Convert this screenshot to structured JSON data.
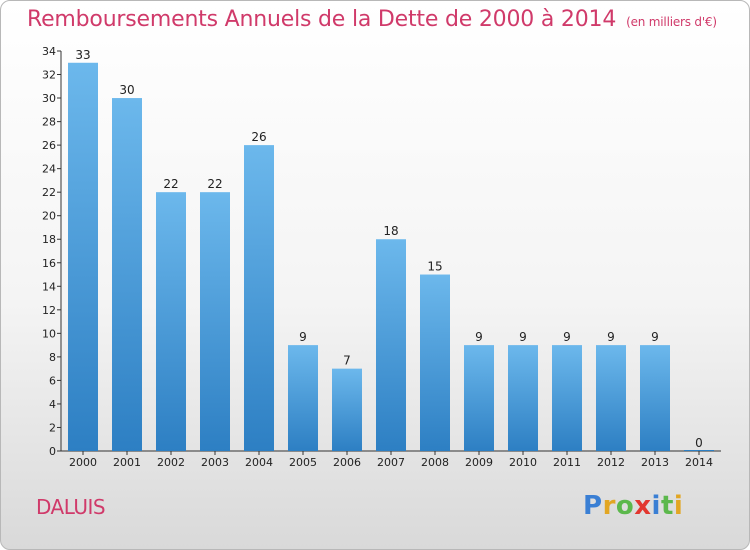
{
  "title": {
    "main": "Remboursements Annuels de la Dette de 2000 à 2014",
    "unit": "(en milliers d'€)"
  },
  "place": "DALUIS",
  "brand": {
    "letters": [
      "P",
      "r",
      "o",
      "x",
      "i",
      "t",
      "i"
    ],
    "colors": [
      "#3a7fd4",
      "#e2a623",
      "#5cb84c",
      "#e2372f",
      "#3a7fd4",
      "#5cb84c",
      "#e2a623"
    ]
  },
  "colors": {
    "bar_light": "#6cb8ec",
    "bar_dark": "#2d7fc3",
    "title": "#d03a6a",
    "axis": "#333333"
  },
  "chart_data": {
    "type": "bar",
    "title": "Remboursements Annuels de la Dette de 2000 à 2014",
    "ylabel": "en milliers d'€",
    "xlabel": "",
    "categories": [
      "2000",
      "2001",
      "2002",
      "2003",
      "2004",
      "2005",
      "2006",
      "2007",
      "2008",
      "2009",
      "2010",
      "2011",
      "2012",
      "2013",
      "2014"
    ],
    "values": [
      33,
      30,
      22,
      22,
      26,
      9,
      7,
      18,
      15,
      9,
      9,
      9,
      9,
      9,
      0
    ],
    "ylim": [
      0,
      34
    ],
    "yticks": [
      0,
      2,
      4,
      6,
      8,
      10,
      12,
      14,
      16,
      18,
      20,
      22,
      24,
      26,
      28,
      30,
      32,
      34
    ],
    "grid": false
  }
}
